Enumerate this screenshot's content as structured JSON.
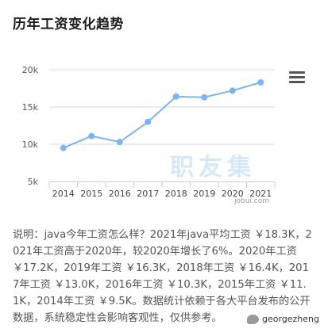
{
  "page": {
    "title": "历年工资变化趋势"
  },
  "chart_data": {
    "type": "line",
    "categories": [
      "2014",
      "2015",
      "2016",
      "2017",
      "2018",
      "2019",
      "2020",
      "2021"
    ],
    "series": [
      {
        "values": [
          9.5,
          11.1,
          10.3,
          13.0,
          16.4,
          16.3,
          17.2,
          18.3
        ]
      }
    ],
    "yticks": [
      "5k",
      "10k",
      "15k",
      "20k"
    ],
    "ylim": [
      5,
      20
    ],
    "grid": true,
    "line_color": "#7cb5ec",
    "watermark": "职友集",
    "credit": "jobui.com"
  },
  "description": "说明：java今年工资怎么样？2021年java平均工资 ￥18.3K，2021年工资高于2020年，较2020年增长了6%。2020年工资 ￥17.2K，2019年工资 ￥16.3K，2018年工资 ￥16.4K，2017年工资 ￥13.0K，2016年工资 ￥10.3K，2015年工资 ￥11.1K，2014年工资 ￥9.5K。数据统计依赖于各大平台发布的公开数据，系统稳定性会影响客观性，仅供参考。",
  "footer": {
    "account": "georgezheng"
  }
}
